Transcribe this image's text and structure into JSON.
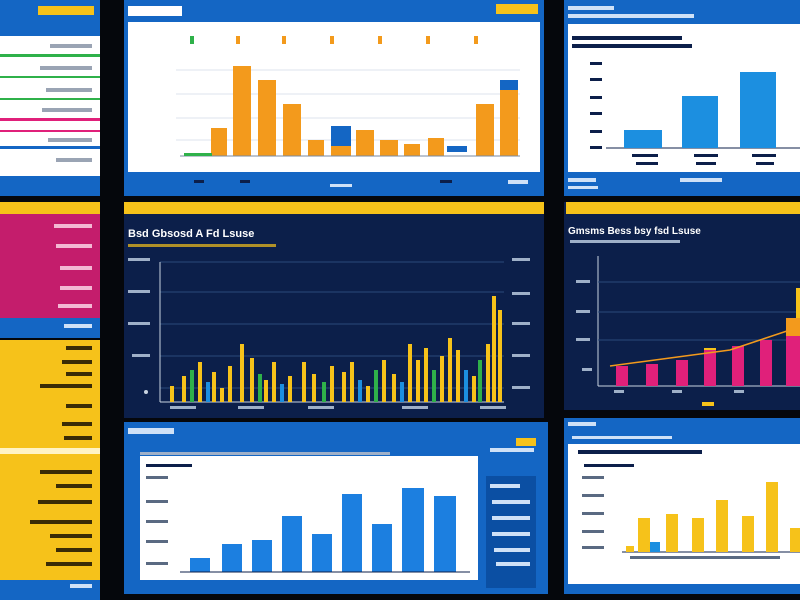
{
  "colors": {
    "yellow": "#f6c21a",
    "blue": "#1466c4",
    "navy": "#0c1f4a",
    "pink": "#e0207a",
    "green": "#2fb14a",
    "orange": "#f39a1c",
    "light_blue": "#1c8fe0"
  },
  "screens": {
    "middle_dark": {
      "title": "Bsd Gbsosd A Fd Lsuse"
    },
    "right_dark": {
      "title": "Gmsms Bess bsy fsd Lsuse"
    }
  }
}
